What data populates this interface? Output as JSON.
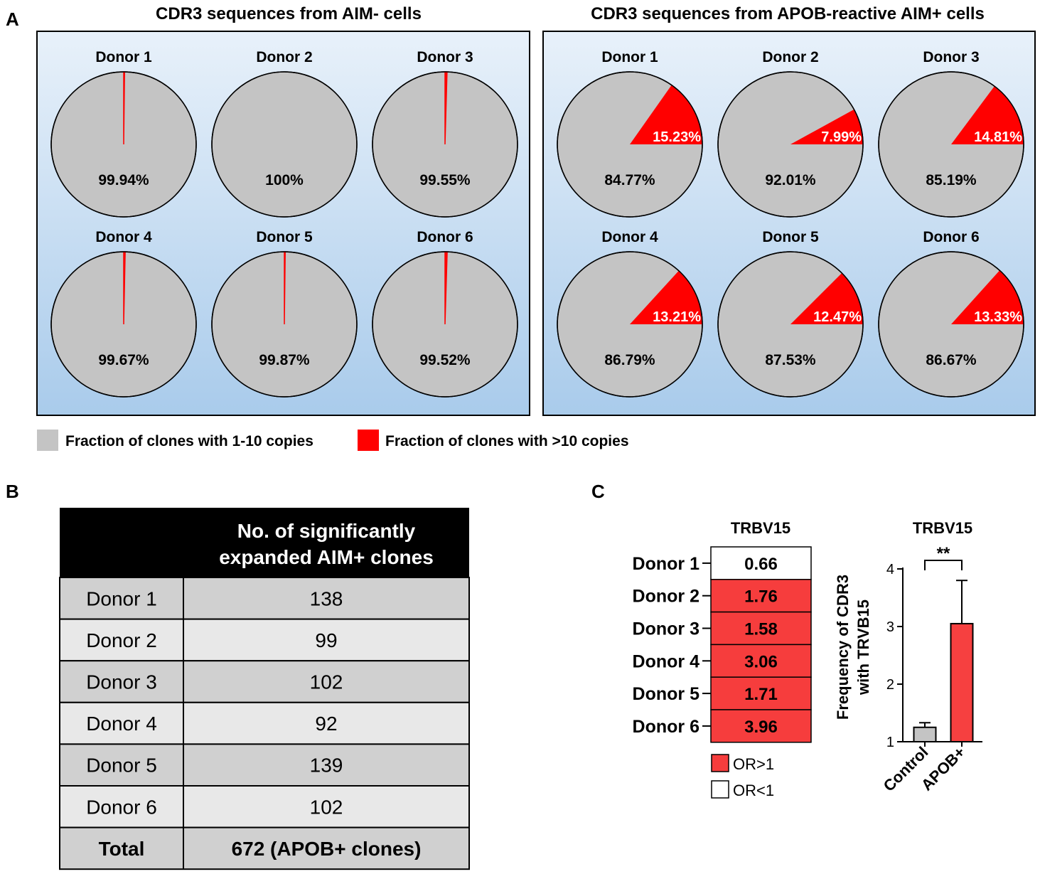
{
  "panel_letters": {
    "a": "A",
    "b": "B",
    "c": "C"
  },
  "colors": {
    "small_clone": "#c4c4c4",
    "expanded_clone": "#ff0000",
    "panel_bg_top": "#e8f1fa",
    "panel_bg_bottom": "#a9cbeb",
    "table_header": "#000000",
    "row_dark": "#d0d0d0",
    "row_light": "#e8e8e8",
    "heat_red": "#f63d3d",
    "control_bar": "#c4c4c4",
    "apob_bar": "#f64040"
  },
  "chart_data": [
    {
      "type": "pie",
      "panel": "A-left",
      "title": "CDR3 sequences from AIM- cells",
      "series_labels": [
        "Fraction of clones with 1-10 copies",
        "Fraction of clones with >10 copies"
      ],
      "pies": [
        {
          "donor": "Donor 1",
          "small_pct": 99.94,
          "expanded_pct": 0.06,
          "small_label": "99.94%",
          "expanded_label": ""
        },
        {
          "donor": "Donor 2",
          "small_pct": 100,
          "expanded_pct": 0,
          "small_label": "100%",
          "expanded_label": ""
        },
        {
          "donor": "Donor 3",
          "small_pct": 99.55,
          "expanded_pct": 0.45,
          "small_label": "99.55%",
          "expanded_label": ""
        },
        {
          "donor": "Donor 4",
          "small_pct": 99.67,
          "expanded_pct": 0.33,
          "small_label": "99.67%",
          "expanded_label": ""
        },
        {
          "donor": "Donor 5",
          "small_pct": 99.87,
          "expanded_pct": 0.13,
          "small_label": "99.87%",
          "expanded_label": ""
        },
        {
          "donor": "Donor 6",
          "small_pct": 99.52,
          "expanded_pct": 0.48,
          "small_label": "99.52%",
          "expanded_label": ""
        }
      ]
    },
    {
      "type": "pie",
      "panel": "A-right",
      "title": "CDR3 sequences from APOB-reactive AIM+ cells",
      "series_labels": [
        "Fraction of clones with 1-10 copies",
        "Fraction of clones with >10 copies"
      ],
      "pies": [
        {
          "donor": "Donor 1",
          "small_pct": 84.77,
          "expanded_pct": 15.23,
          "small_label": "84.77%",
          "expanded_label": "15.23%"
        },
        {
          "donor": "Donor 2",
          "small_pct": 92.01,
          "expanded_pct": 7.99,
          "small_label": "92.01%",
          "expanded_label": "7.99%"
        },
        {
          "donor": "Donor 3",
          "small_pct": 85.19,
          "expanded_pct": 14.81,
          "small_label": "85.19%",
          "expanded_label": "14.81%"
        },
        {
          "donor": "Donor 4",
          "small_pct": 86.79,
          "expanded_pct": 13.21,
          "small_label": "86.79%",
          "expanded_label": "13.21%"
        },
        {
          "donor": "Donor 5",
          "small_pct": 87.53,
          "expanded_pct": 12.47,
          "small_label": "87.53%",
          "expanded_label": "12.47%"
        },
        {
          "donor": "Donor 6",
          "small_pct": 86.67,
          "expanded_pct": 13.33,
          "small_label": "86.67%",
          "expanded_label": "13.33%"
        }
      ]
    },
    {
      "type": "table",
      "panel": "B",
      "header": [
        "",
        "No. of significantly expanded AIM+ clones"
      ],
      "header_lines": [
        "No. of significantly",
        "expanded AIM+ clones"
      ],
      "rows": [
        [
          "Donor 1",
          "138"
        ],
        [
          "Donor 2",
          "99"
        ],
        [
          "Donor 3",
          "102"
        ],
        [
          "Donor 4",
          "92"
        ],
        [
          "Donor 5",
          "139"
        ],
        [
          "Donor 6",
          "102"
        ]
      ],
      "total": [
        "Total",
        "672 (APOB+ clones)"
      ]
    },
    {
      "type": "heatmap",
      "panel": "C-left",
      "title": "TRBV15",
      "rows": [
        "Donor 1",
        "Donor 2",
        "Donor 3",
        "Donor 4",
        "Donor 5",
        "Donor 6"
      ],
      "values": [
        0.66,
        1.76,
        1.58,
        3.06,
        1.71,
        3.96
      ],
      "value_labels": [
        "0.66",
        "1.76",
        "1.58",
        "3.06",
        "1.71",
        "3.96"
      ],
      "legend": [
        "OR>1",
        "OR<1"
      ]
    },
    {
      "type": "bar",
      "panel": "C-right",
      "title": "TRBV15",
      "categories": [
        "Control",
        "APOB+"
      ],
      "values": [
        1.25,
        3.05
      ],
      "errors": [
        0.08,
        0.75
      ],
      "ylabel": "Frequency of CDR3 with TRVB15",
      "ylim": [
        1,
        4
      ],
      "yticks": [
        "1",
        "2",
        "3",
        "4"
      ],
      "significance": "**"
    }
  ]
}
